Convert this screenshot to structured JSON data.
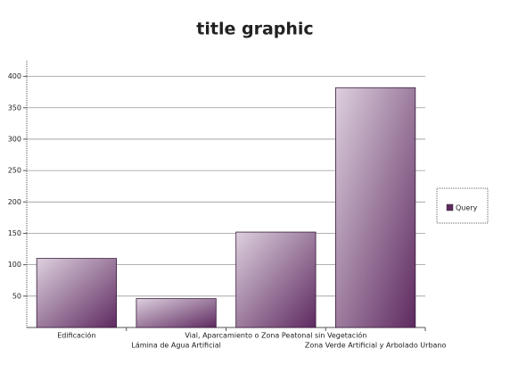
{
  "chart_data": {
    "type": "bar",
    "title": "title graphic",
    "categories": [
      "Edificación",
      "Lámina de Agua Artificial",
      "Vial, Aparcamiento o Zona Peatonal sin Vegetación",
      "Zona Verde Artificial y Arbolado Urbano"
    ],
    "series": [
      {
        "name": "Query",
        "color": "#5e2a60",
        "values": [
          110,
          46,
          152,
          382
        ]
      }
    ],
    "ylim": [
      0,
      425
    ],
    "yticks": [
      50,
      100,
      150,
      200,
      250,
      300,
      350,
      400
    ],
    "grid": true,
    "legend": "right"
  }
}
